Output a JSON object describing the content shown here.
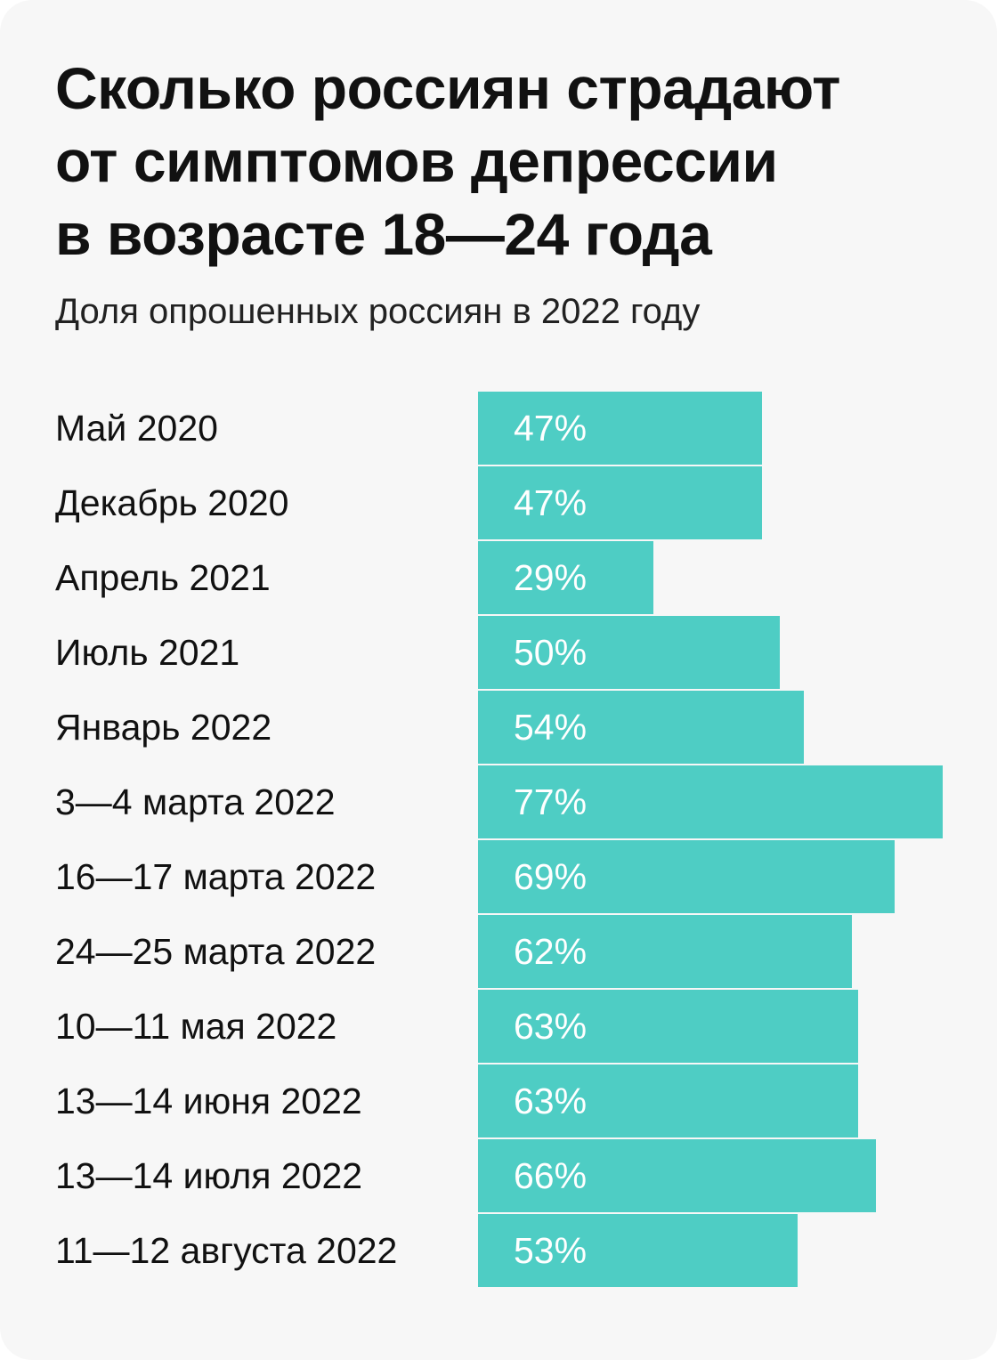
{
  "title_lines": [
    "Сколько россиян страдают",
    "от симптомов депрессии",
    "в возрасте 18—24 года"
  ],
  "subtitle": "Доля опрошенных россиян в 2022 году",
  "colors": {
    "background": "#f7f7f7",
    "bar": "#4ecdc4",
    "bar_separator": "#f7f7f7",
    "text": "#111111",
    "value_text": "#ffffff"
  },
  "chart_data": {
    "type": "bar",
    "orientation": "horizontal",
    "title": "Сколько россиян страдают от симптомов депрессии в возрасте 18—24 года",
    "subtitle": "Доля опрошенных россиян в 2022 году",
    "unit": "%",
    "categories": [
      "Май 2020",
      "Декабрь 2020",
      "Апрель 2021",
      "Июль 2021",
      "Январь 2022",
      "3—4 марта 2022",
      "16—17 марта 2022",
      "24—25 марта 2022",
      "10—11 мая 2022",
      "13—14 июня 2022",
      "13—14 июля 2022",
      "11—12 августа 2022"
    ],
    "values": [
      47,
      47,
      29,
      50,
      54,
      77,
      69,
      62,
      63,
      63,
      66,
      53
    ],
    "value_labels": [
      "47%",
      "47%",
      "29%",
      "50%",
      "54%",
      "77%",
      "69%",
      "62%",
      "63%",
      "63%",
      "66%",
      "53%"
    ],
    "grid": false,
    "legend": "none"
  }
}
